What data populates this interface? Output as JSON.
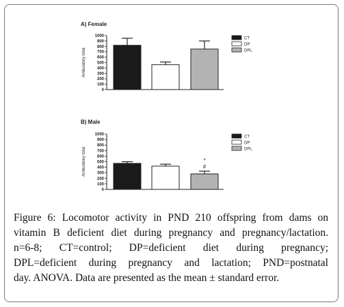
{
  "chart_data": [
    {
      "type": "bar",
      "title": "A) Female",
      "ylabel": "Ambulatory total",
      "ylim": [
        0,
        1000
      ],
      "yticks": [
        0,
        100,
        200,
        300,
        400,
        500,
        600,
        700,
        800,
        900,
        1000
      ],
      "categories": [
        "CT",
        "DP",
        "DPL"
      ],
      "values": [
        820,
        460,
        750
      ],
      "errors": [
        130,
        50,
        150
      ],
      "colors": [
        "#1a1a1a",
        "#ffffff",
        "#b3b3b3"
      ],
      "legend": [
        "CT",
        "DP",
        "DPL"
      ],
      "legend_position": "right",
      "annotations": []
    },
    {
      "type": "bar",
      "title": "B) Male",
      "ylabel": "Ambulatory total",
      "ylim": [
        0,
        1000
      ],
      "yticks": [
        0,
        100,
        200,
        300,
        400,
        500,
        600,
        700,
        800,
        900,
        1000
      ],
      "categories": [
        "CT",
        "DP",
        "DPL"
      ],
      "values": [
        470,
        420,
        280
      ],
      "errors": [
        30,
        35,
        50
      ],
      "colors": [
        "#1a1a1a",
        "#ffffff",
        "#b3b3b3"
      ],
      "legend": [
        "CT",
        "DP",
        "DPL"
      ],
      "legend_position": "right",
      "annotations": [
        {
          "category": "DPL",
          "labels": [
            "*",
            "#"
          ]
        }
      ]
    }
  ],
  "caption": {
    "label": "Figure 6:",
    "lines": [
      " Locomotor activity in PND 210 offspring from dams on",
      "vitamin B deficient diet during pregnancy and pregnancy/lactation.",
      "n=6-8; CT=control; DP=deficient diet during pregnancy;",
      "DPL=deficient during pregnancy and lactation; PND=postnatal",
      "day. ANOVA. Data are presented as the mean ± standard error."
    ]
  }
}
